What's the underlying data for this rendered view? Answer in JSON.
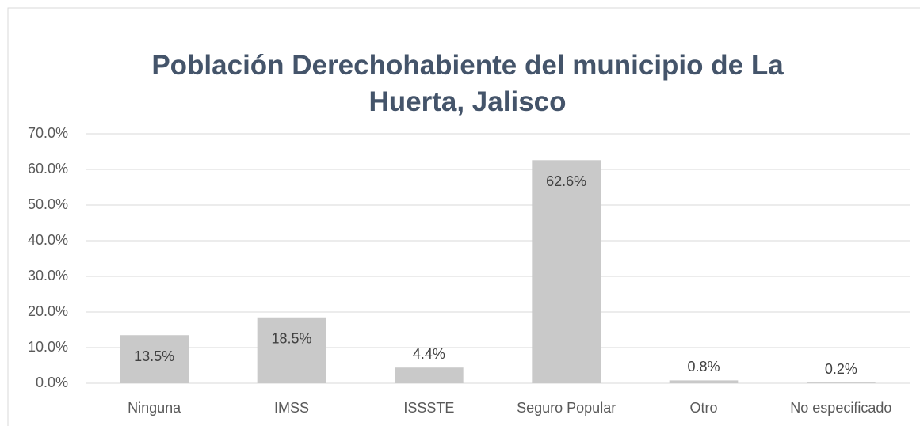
{
  "chart_data": {
    "type": "bar",
    "title": "Población Derechohabiente del municipio de La Huerta, Jalisco",
    "categories": [
      "Ninguna",
      "IMSS",
      "ISSSTE",
      "Seguro Popular",
      "Otro",
      "No especificado"
    ],
    "values": [
      13.5,
      18.5,
      4.4,
      62.6,
      0.8,
      0.2
    ],
    "value_labels": [
      "13.5%",
      "18.5%",
      "4.4%",
      "62.6%",
      "0.8%",
      "0.2%"
    ],
    "color": "#c9c9c9",
    "ylim": [
      0,
      70
    ],
    "yticks": [
      {
        "value": 0,
        "label": "0.0%"
      },
      {
        "value": 10,
        "label": "10.0%"
      },
      {
        "value": 20,
        "label": "20.0%"
      },
      {
        "value": 30,
        "label": "30.0%"
      },
      {
        "value": 40,
        "label": "40.0%"
      },
      {
        "value": 50,
        "label": "50.0%"
      },
      {
        "value": 60,
        "label": "60.0%"
      },
      {
        "value": 70,
        "label": "70.0%"
      }
    ],
    "grid": true
  }
}
